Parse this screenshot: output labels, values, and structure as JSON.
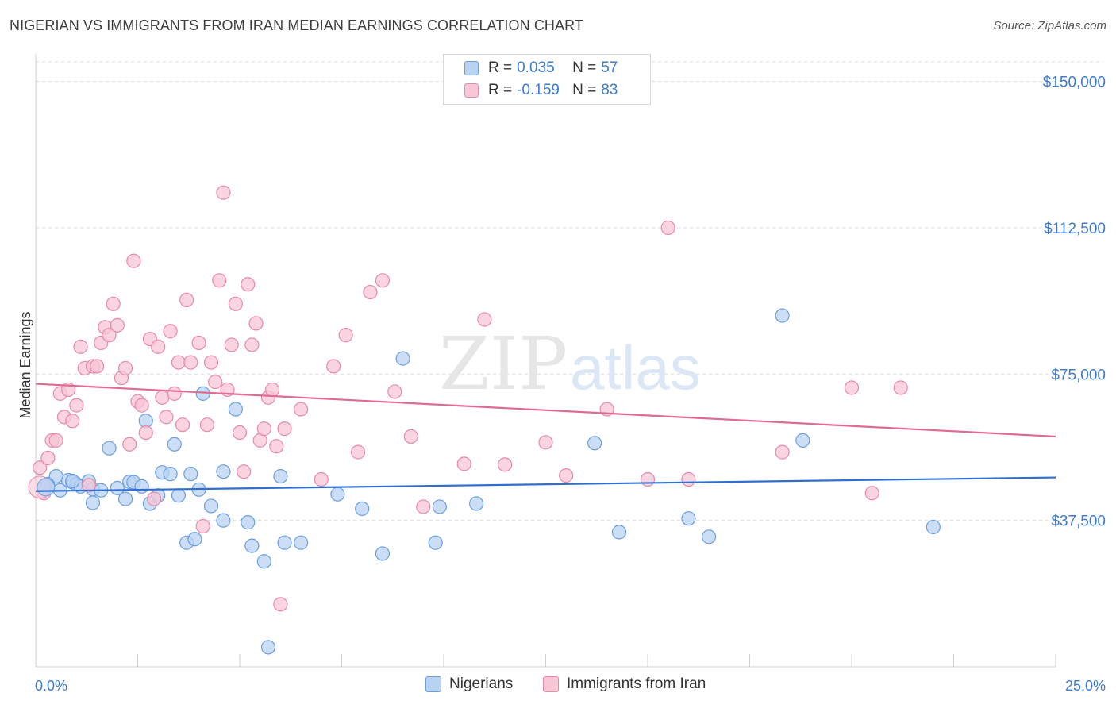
{
  "header": {
    "title": "NIGERIAN VS IMMIGRANTS FROM IRAN MEDIAN EARNINGS CORRELATION CHART",
    "source": "Source: ZipAtlas.com"
  },
  "legend_top": {
    "rows": [
      {
        "key": "R = ",
        "r": "0.035",
        "n_key": "N = ",
        "n": "57"
      },
      {
        "key": "R = ",
        "r": "-0.159",
        "n_key": "N = ",
        "n": "83"
      }
    ]
  },
  "legend_bottom": {
    "items": [
      "Nigerians",
      "Immigrants from Iran"
    ]
  },
  "colors": {
    "blue_fill": "#b9d3f3",
    "blue_stroke": "#6a9fe0",
    "blue_line": "#2f6fd0",
    "pink_fill": "#f8c6d5",
    "pink_stroke": "#e889a8",
    "pink_line": "#e06a92",
    "tick_text": "#3d7bd1",
    "grid": "#dddddd"
  },
  "chart_data": {
    "type": "scatter",
    "title": "NIGERIAN VS IMMIGRANTS FROM IRAN MEDIAN EARNINGS CORRELATION CHART",
    "ylabel": "Median Earnings",
    "xlabel": "",
    "xlim": [
      0,
      25
    ],
    "ylim": [
      0,
      155000
    ],
    "x_tick_labels": [
      "0.0%",
      "25.0%"
    ],
    "y_ticks": [
      37500,
      75000,
      112500,
      150000
    ],
    "y_tick_labels": [
      "$37,500",
      "$75,000",
      "$112,500",
      "$150,000"
    ],
    "grid": true,
    "legend_position": "top-center",
    "series": [
      {
        "name": "Nigerians",
        "r": 0.035,
        "n": 57,
        "trend": [
          [
            0,
            45000
          ],
          [
            25,
            48500
          ]
        ],
        "points": [
          [
            0.2,
            45800
          ],
          [
            0.3,
            46800
          ],
          [
            0.5,
            48800
          ],
          [
            0.6,
            45200
          ],
          [
            0.8,
            47800
          ],
          [
            0.9,
            47300
          ],
          [
            1.0,
            46800
          ],
          [
            1.1,
            46200
          ],
          [
            1.3,
            47500
          ],
          [
            1.4,
            42000
          ],
          [
            1.4,
            45500
          ],
          [
            1.6,
            45200
          ],
          [
            1.8,
            56000
          ],
          [
            2.0,
            45800
          ],
          [
            2.2,
            43000
          ],
          [
            2.3,
            47400
          ],
          [
            2.4,
            47300
          ],
          [
            2.6,
            46200
          ],
          [
            2.7,
            63000
          ],
          [
            2.8,
            41800
          ],
          [
            3.1,
            49800
          ],
          [
            3.0,
            43900
          ],
          [
            3.3,
            49400
          ],
          [
            3.4,
            57000
          ],
          [
            3.5,
            43900
          ],
          [
            3.7,
            31800
          ],
          [
            3.8,
            49400
          ],
          [
            3.9,
            32700
          ],
          [
            4.0,
            45400
          ],
          [
            4.1,
            70000
          ],
          [
            4.3,
            41200
          ],
          [
            4.6,
            50000
          ],
          [
            4.6,
            37500
          ],
          [
            4.9,
            66000
          ],
          [
            5.2,
            37000
          ],
          [
            5.3,
            31000
          ],
          [
            5.6,
            27000
          ],
          [
            5.7,
            5000
          ],
          [
            6.0,
            48800
          ],
          [
            6.1,
            31800
          ],
          [
            6.5,
            31800
          ],
          [
            7.4,
            44200
          ],
          [
            8.0,
            40500
          ],
          [
            8.5,
            29000
          ],
          [
            9.0,
            79000
          ],
          [
            9.8,
            31800
          ],
          [
            9.9,
            41000
          ],
          [
            10.8,
            41800
          ],
          [
            13.7,
            57300
          ],
          [
            14.3,
            34500
          ],
          [
            16.0,
            38000
          ],
          [
            16.5,
            33300
          ],
          [
            18.3,
            90000
          ],
          [
            18.8,
            58000
          ],
          [
            22.0,
            35800
          ],
          [
            0.3,
            46500
          ],
          [
            0.9,
            47600
          ]
        ]
      },
      {
        "name": "Immigrants from Iran",
        "r": -0.159,
        "n": 83,
        "trend": [
          [
            0,
            72500
          ],
          [
            25,
            59000
          ]
        ],
        "points": [
          [
            0.1,
            51000
          ],
          [
            0.2,
            44500
          ],
          [
            0.3,
            53500
          ],
          [
            0.4,
            58000
          ],
          [
            0.5,
            58000
          ],
          [
            0.6,
            70000
          ],
          [
            0.7,
            64000
          ],
          [
            0.8,
            71000
          ],
          [
            0.9,
            63000
          ],
          [
            1.0,
            67000
          ],
          [
            1.1,
            82000
          ],
          [
            1.2,
            76500
          ],
          [
            1.3,
            46500
          ],
          [
            1.4,
            77000
          ],
          [
            1.5,
            77000
          ],
          [
            1.6,
            83000
          ],
          [
            1.7,
            87000
          ],
          [
            1.8,
            85000
          ],
          [
            1.9,
            93000
          ],
          [
            2.0,
            87500
          ],
          [
            2.1,
            74000
          ],
          [
            2.2,
            76500
          ],
          [
            2.3,
            57000
          ],
          [
            2.4,
            104000
          ],
          [
            2.5,
            68000
          ],
          [
            2.6,
            67000
          ],
          [
            2.7,
            60000
          ],
          [
            2.8,
            84000
          ],
          [
            2.9,
            43000
          ],
          [
            3.0,
            82000
          ],
          [
            3.1,
            69000
          ],
          [
            3.2,
            64000
          ],
          [
            3.3,
            86000
          ],
          [
            3.4,
            70000
          ],
          [
            3.5,
            78000
          ],
          [
            3.6,
            62000
          ],
          [
            3.7,
            94000
          ],
          [
            3.8,
            78000
          ],
          [
            4.0,
            83000
          ],
          [
            4.1,
            36000
          ],
          [
            4.2,
            62000
          ],
          [
            4.3,
            78000
          ],
          [
            4.4,
            73000
          ],
          [
            4.5,
            99000
          ],
          [
            4.6,
            121500
          ],
          [
            4.7,
            71000
          ],
          [
            4.8,
            82500
          ],
          [
            4.9,
            93000
          ],
          [
            5.0,
            60000
          ],
          [
            5.1,
            50000
          ],
          [
            5.2,
            98000
          ],
          [
            5.3,
            82500
          ],
          [
            5.4,
            88000
          ],
          [
            5.5,
            58000
          ],
          [
            5.6,
            61000
          ],
          [
            5.7,
            69000
          ],
          [
            5.8,
            71000
          ],
          [
            5.9,
            56500
          ],
          [
            6.0,
            16000
          ],
          [
            6.1,
            61000
          ],
          [
            6.5,
            66000
          ],
          [
            7.0,
            48000
          ],
          [
            7.3,
            77000
          ],
          [
            7.6,
            85000
          ],
          [
            7.9,
            55000
          ],
          [
            8.2,
            96000
          ],
          [
            8.5,
            99000
          ],
          [
            8.8,
            70500
          ],
          [
            9.2,
            59000
          ],
          [
            9.5,
            41000
          ],
          [
            10.5,
            52000
          ],
          [
            11.0,
            89000
          ],
          [
            11.5,
            51800
          ],
          [
            12.5,
            57500
          ],
          [
            13.0,
            49000
          ],
          [
            14.0,
            66000
          ],
          [
            15.0,
            48000
          ],
          [
            15.5,
            112500
          ],
          [
            16.0,
            48000
          ],
          [
            18.3,
            55000
          ],
          [
            20.0,
            71500
          ],
          [
            21.2,
            71500
          ],
          [
            20.5,
            44500
          ]
        ]
      }
    ]
  }
}
